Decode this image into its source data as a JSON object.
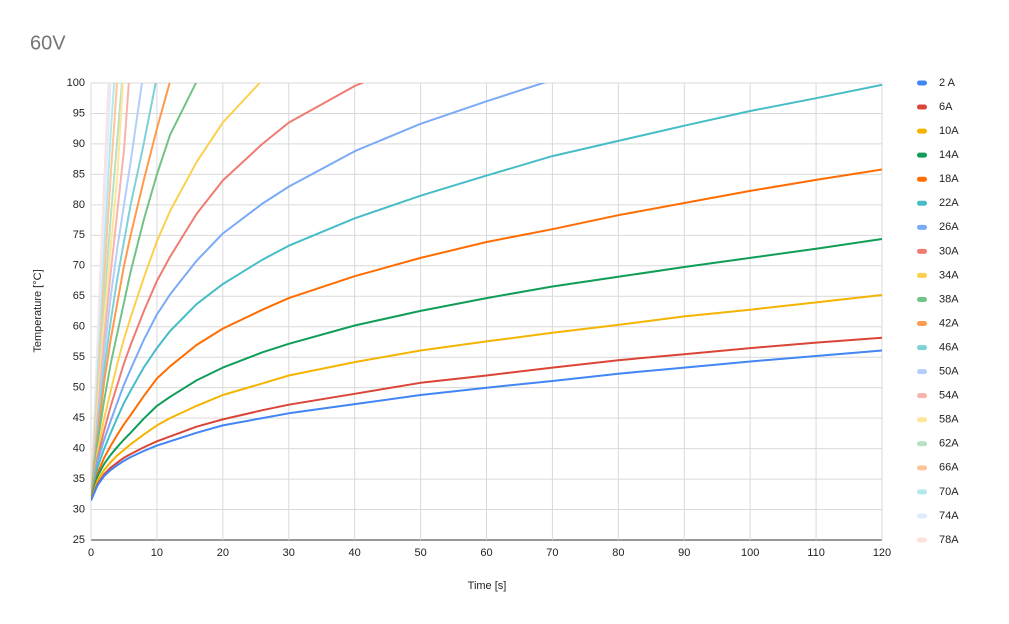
{
  "chart_data": {
    "type": "line",
    "title": "60V",
    "x_label": "Time [s]",
    "y_label": "Temperature [°C]",
    "x": [
      0,
      1,
      2,
      3,
      4,
      5,
      6,
      8,
      10,
      12,
      16,
      20,
      26,
      30,
      40,
      50,
      60,
      70,
      80,
      90,
      100,
      110,
      120
    ],
    "xlim": [
      0,
      120
    ],
    "xticks": [
      0,
      10,
      20,
      30,
      40,
      50,
      60,
      70,
      80,
      90,
      100,
      110,
      120
    ],
    "ylim": [
      25,
      100
    ],
    "yticks": [
      25,
      30,
      35,
      40,
      45,
      50,
      55,
      60,
      65,
      70,
      75,
      80,
      85,
      90,
      95,
      100
    ],
    "grid": true,
    "legend": "right",
    "series": [
      {
        "name": "2 A",
        "color": "#4285f4",
        "values": [
          31.5,
          34,
          35.5,
          36.5,
          37.3,
          38,
          38.6,
          39.6,
          40.5,
          41.2,
          42.6,
          43.8,
          45,
          45.8,
          47.3,
          48.8,
          50,
          51.1,
          52.3,
          53.3,
          54.3,
          55.2,
          56.1
        ]
      },
      {
        "name": "6A",
        "color": "#db4437",
        "values": [
          31.5,
          34.2,
          35.8,
          36.9,
          37.7,
          38.5,
          39.1,
          40.2,
          41.2,
          42,
          43.6,
          44.8,
          46.3,
          47.2,
          49,
          50.8,
          52,
          53.3,
          54.5,
          55.5,
          56.5,
          57.4,
          58.2
        ]
      },
      {
        "name": "10A",
        "color": "#f4b400",
        "values": [
          31.5,
          34.8,
          36.5,
          37.8,
          38.9,
          39.8,
          40.7,
          42.3,
          43.8,
          45,
          47,
          48.8,
          50.7,
          52,
          54.2,
          56.1,
          57.6,
          59,
          60.3,
          61.7,
          62.8,
          64,
          65.2
        ]
      },
      {
        "name": "14A",
        "color": "#0f9d58",
        "values": [
          31.5,
          35.5,
          37.5,
          39,
          40.3,
          41.5,
          42.6,
          44.9,
          47,
          48.5,
          51.2,
          53.3,
          55.8,
          57.2,
          60.2,
          62.6,
          64.7,
          66.6,
          68.2,
          69.8,
          71.3,
          72.8,
          74.4
        ]
      },
      {
        "name": "18A",
        "color": "#ff6d01",
        "values": [
          31.5,
          36,
          38.5,
          40.5,
          42.3,
          44,
          45.5,
          48.6,
          51.5,
          53.5,
          57,
          59.7,
          62.8,
          64.7,
          68.3,
          71.3,
          73.9,
          76,
          78.3,
          80.3,
          82.3,
          84.1,
          85.8
        ]
      },
      {
        "name": "22A",
        "color": "#46bdc6",
        "values": [
          31.5,
          37,
          40,
          42.6,
          45.1,
          47.5,
          49.5,
          53.3,
          56.5,
          59.3,
          63.7,
          67,
          71,
          73.3,
          77.8,
          81.5,
          84.8,
          88,
          90.5,
          93,
          95.4,
          97.5,
          99.7
        ]
      },
      {
        "name": "26A",
        "color": "#7baaf7",
        "values": [
          31.5,
          38,
          41.5,
          44.6,
          47.6,
          50.5,
          53,
          57.8,
          62,
          65.3,
          70.8,
          75.3,
          80.2,
          83,
          88.8,
          93.3,
          97,
          100.5,
          null,
          null,
          null,
          null,
          null
        ]
      },
      {
        "name": "30A",
        "color": "#f07b72",
        "values": [
          31.5,
          38.5,
          43,
          47,
          50.5,
          54,
          57,
          62.5,
          67.5,
          71.5,
          78.5,
          84,
          90,
          93.5,
          99.5,
          104,
          null,
          null,
          null,
          null,
          null,
          null,
          null
        ]
      },
      {
        "name": "34A",
        "color": "#fcd04f",
        "values": [
          31.5,
          39.5,
          45,
          49.5,
          54,
          58,
          61.5,
          68,
          74,
          79,
          87,
          93.5,
          100.5,
          null,
          null,
          null,
          null,
          null,
          null,
          null,
          null,
          null,
          null
        ]
      },
      {
        "name": "38A",
        "color": "#71c287",
        "values": [
          31.5,
          41,
          48,
          54,
          59,
          64,
          69,
          77.5,
          85,
          91.5,
          100.2,
          null,
          null,
          null,
          null,
          null,
          null,
          null,
          null,
          null,
          null,
          null,
          null
        ]
      },
      {
        "name": "42A",
        "color": "#ff994d",
        "values": [
          31.5,
          42,
          51,
          58,
          64,
          70,
          75,
          84,
          92.5,
          100.3,
          null,
          null,
          null,
          null,
          null,
          null,
          null,
          null,
          null,
          null,
          null,
          null,
          null
        ]
      },
      {
        "name": "46A",
        "color": "#7ed1d7",
        "values": [
          31.5,
          43,
          53,
          61,
          68,
          74,
          80,
          90,
          101,
          null,
          null,
          null,
          null,
          null,
          null,
          null,
          null,
          null,
          null,
          null,
          null,
          null,
          null
        ]
      },
      {
        "name": "50A",
        "color": "#b3cefb",
        "values": [
          31.5,
          44,
          55.5,
          65,
          73,
          80,
          87,
          102,
          null,
          null,
          null,
          null,
          null,
          null,
          null,
          null,
          null,
          null,
          null,
          null,
          null,
          null,
          null
        ]
      },
      {
        "name": "54A",
        "color": "#f7b4ae",
        "values": [
          31.5,
          45.5,
          58,
          69,
          79,
          89,
          104,
          null,
          null,
          null,
          null,
          null,
          null,
          null,
          null,
          null,
          null,
          null,
          null,
          null,
          null,
          null,
          null
        ]
      },
      {
        "name": "58A",
        "color": "#fde69a",
        "values": [
          31.5,
          47,
          61,
          73,
          85,
          103,
          null,
          null,
          null,
          null,
          null,
          null,
          null,
          null,
          null,
          null,
          null,
          null,
          null,
          null,
          null,
          null,
          null
        ]
      },
      {
        "name": "62A",
        "color": "#b7e1c3",
        "values": [
          31.5,
          48,
          64,
          78,
          91,
          104,
          null,
          null,
          null,
          null,
          null,
          null,
          null,
          null,
          null,
          null,
          null,
          null,
          null,
          null,
          null,
          null,
          null
        ]
      },
      {
        "name": "66A",
        "color": "#ffc599",
        "values": [
          31.5,
          50,
          68,
          85,
          101,
          null,
          null,
          null,
          null,
          null,
          null,
          null,
          null,
          null,
          null,
          null,
          null,
          null,
          null,
          null,
          null,
          null,
          null
        ]
      },
      {
        "name": "70A",
        "color": "#b5e8eb",
        "values": [
          31.5,
          52,
          72,
          92,
          108,
          null,
          null,
          null,
          null,
          null,
          null,
          null,
          null,
          null,
          null,
          null,
          null,
          null,
          null,
          null,
          null,
          null,
          null
        ]
      },
      {
        "name": "74A",
        "color": "#e0ebfd",
        "values": [
          31.5,
          55,
          78,
          101,
          null,
          null,
          null,
          null,
          null,
          null,
          null,
          null,
          null,
          null,
          null,
          null,
          null,
          null,
          null,
          null,
          null,
          null,
          null
        ]
      },
      {
        "name": "78A",
        "color": "#fce1df",
        "values": [
          31.5,
          58,
          84,
          108,
          null,
          null,
          null,
          null,
          null,
          null,
          null,
          null,
          null,
          null,
          null,
          null,
          null,
          null,
          null,
          null,
          null,
          null,
          null
        ]
      }
    ]
  }
}
